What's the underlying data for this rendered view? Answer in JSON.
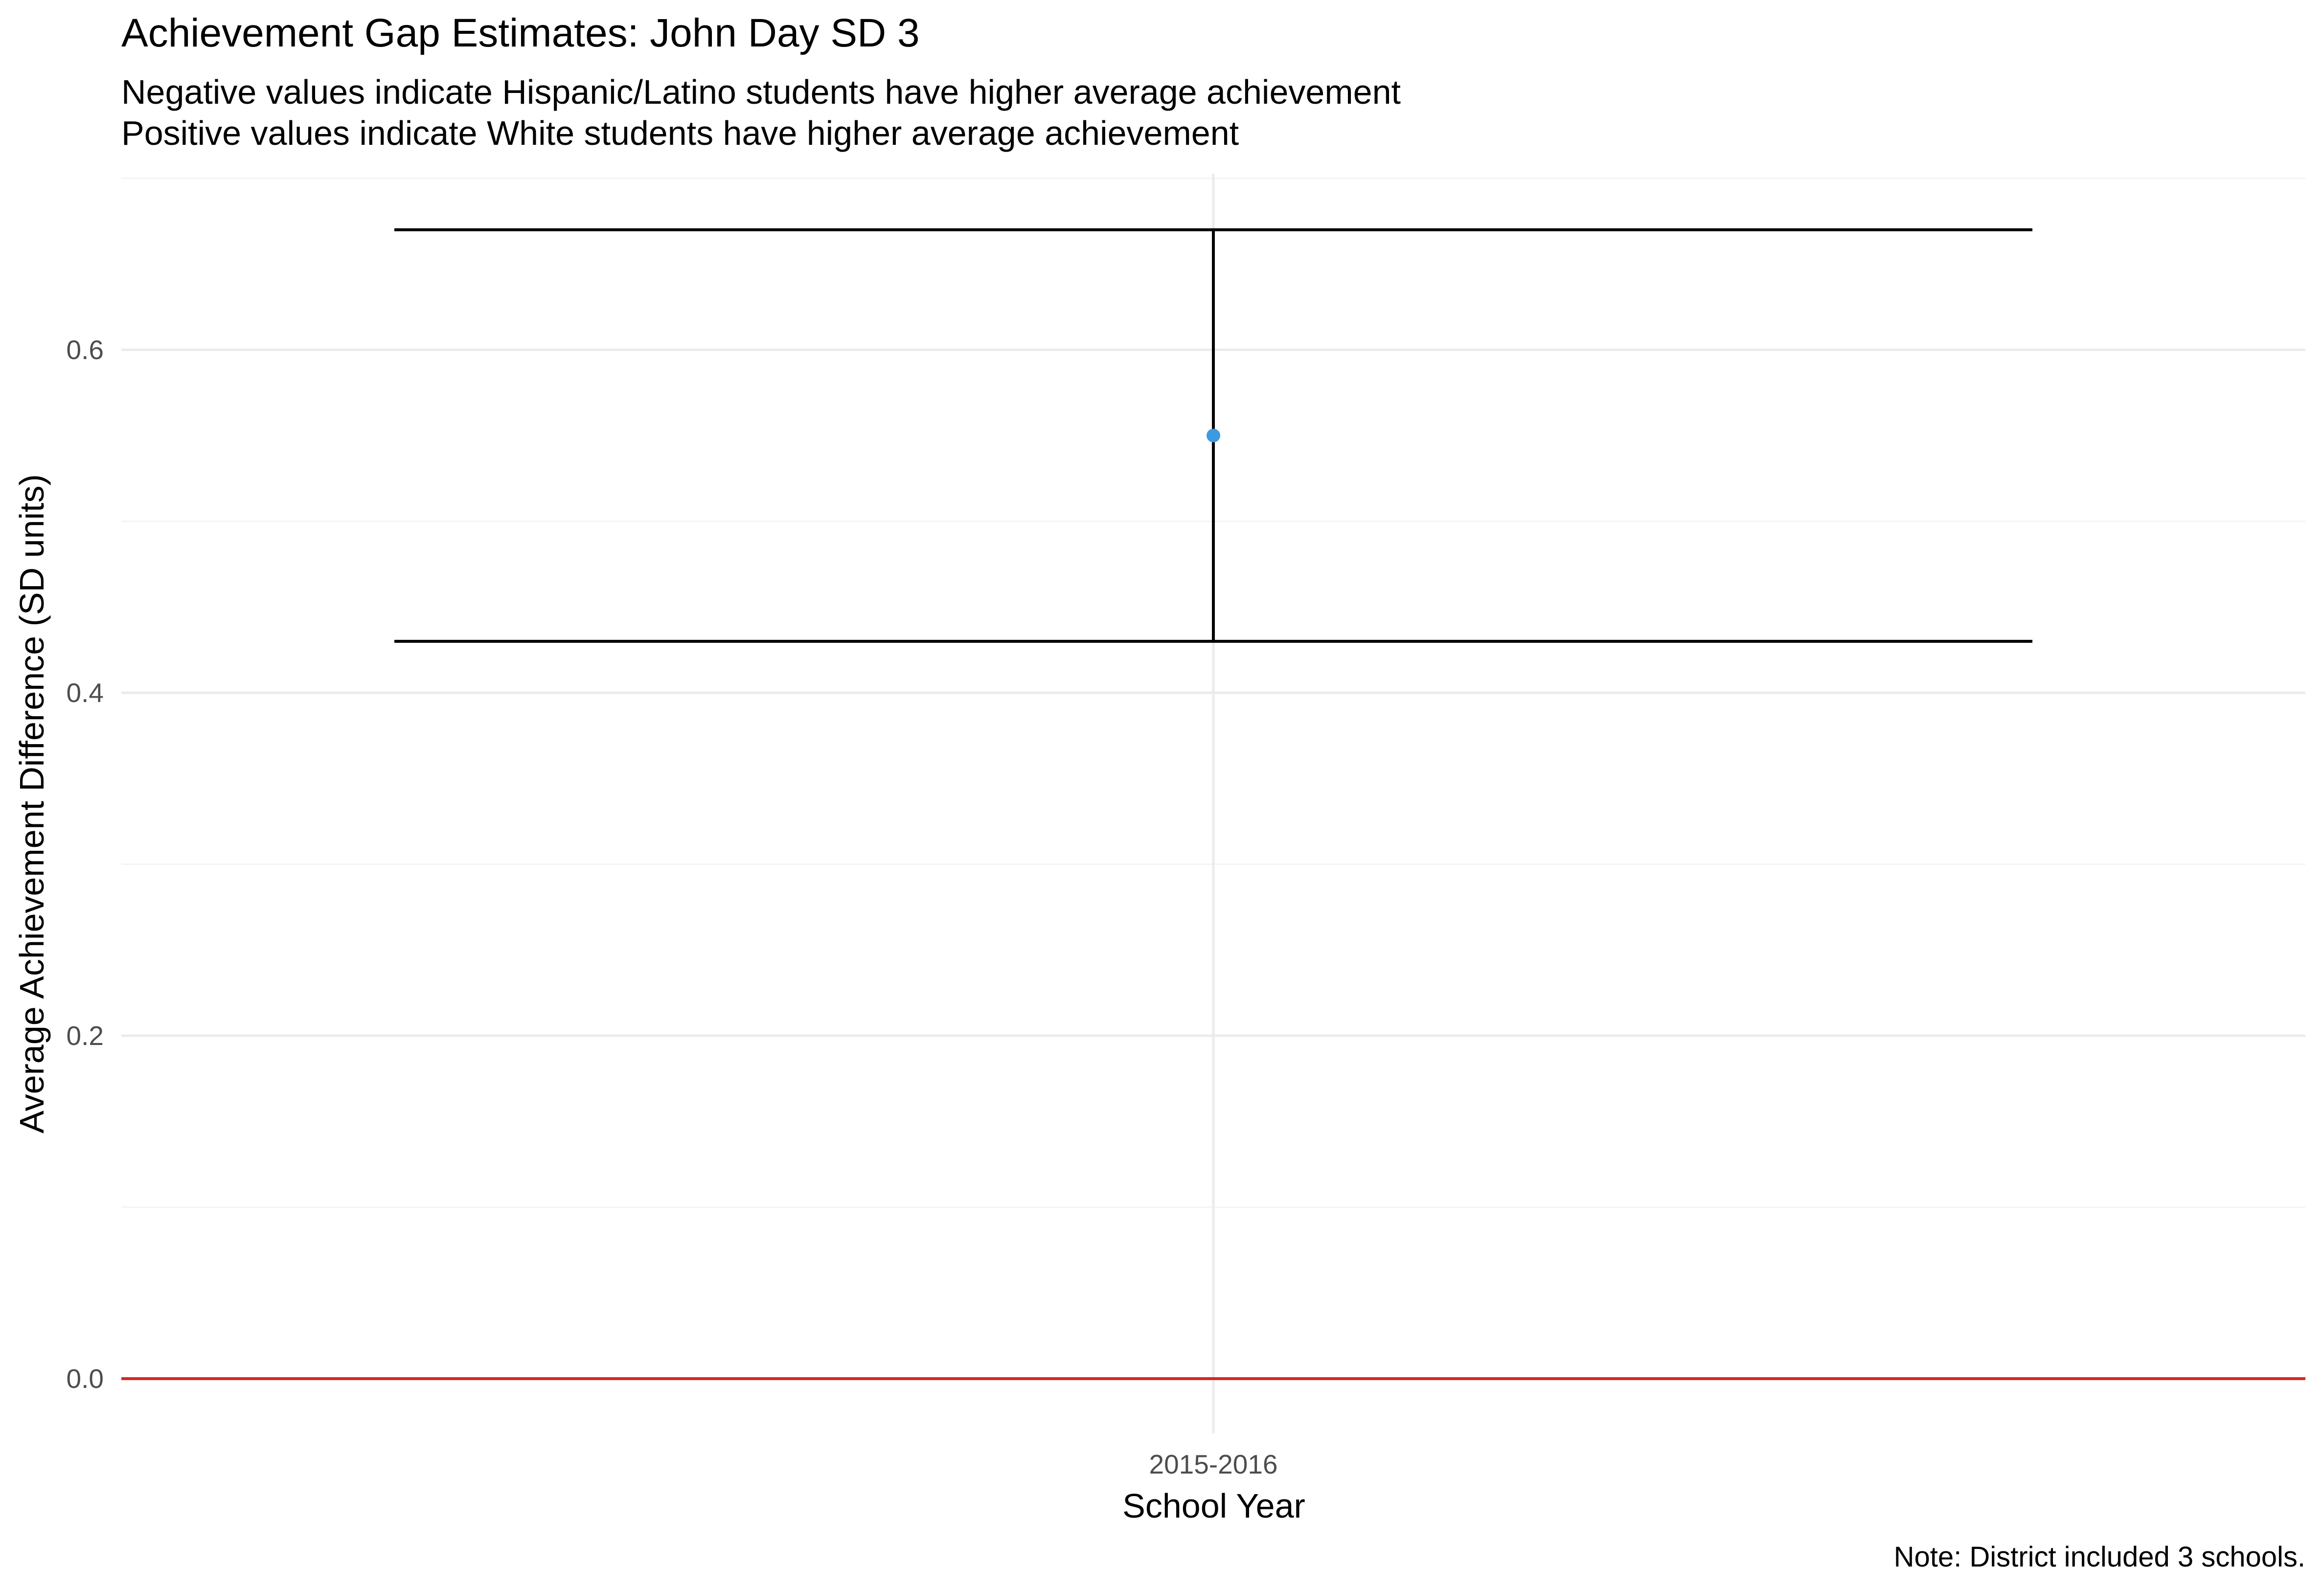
{
  "chart_data": {
    "type": "errorbar",
    "title": "Achievement Gap Estimates: John Day SD 3",
    "subtitle_lines": [
      "Negative values indicate Hispanic/Latino students have higher average achievement",
      "Positive values indicate White students have higher average achievement"
    ],
    "xlabel": "School Year",
    "ylabel": "Average Achievement Difference (SD units)",
    "caption": "Note: District included 3 schools.",
    "categories": [
      "2015-2016"
    ],
    "points": [
      {
        "x": "2015-2016",
        "y": 0.55,
        "ymin": 0.43,
        "ymax": 0.67
      }
    ],
    "ylim": [
      -0.025,
      0.7
    ],
    "yticks": [
      0.0,
      0.2,
      0.4,
      0.6
    ],
    "ytick_labels": [
      "0.0",
      "0.2",
      "0.4",
      "0.6"
    ],
    "yminor_ticks": [
      0.1,
      0.3,
      0.5
    ],
    "grid": true,
    "reference_line": {
      "y": 0.0
    },
    "colors": {
      "point": "#3B9AE1",
      "errorbar": "#000000",
      "reference_line": "#D62728",
      "grid_major": "#EBEBEB",
      "grid_minor": "#F4F4F4"
    }
  }
}
